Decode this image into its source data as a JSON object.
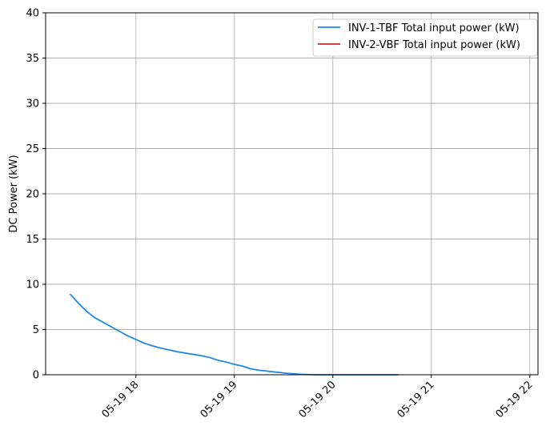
{
  "chart_data": {
    "type": "line",
    "title": "",
    "xlabel": "",
    "ylabel": "DC Power (kW)",
    "ylim": [
      0,
      40
    ],
    "yticks": [
      0,
      5,
      10,
      15,
      20,
      25,
      30,
      35,
      40
    ],
    "xlim_hours": [
      17.0833,
      22.0833
    ],
    "xticks": [
      {
        "value": 18,
        "label": "05-19 18"
      },
      {
        "value": 19,
        "label": "05-19 19"
      },
      {
        "value": 20,
        "label": "05-19 20"
      },
      {
        "value": 21,
        "label": "05-19 21"
      },
      {
        "value": 22,
        "label": "05-19 22"
      }
    ],
    "grid": true,
    "legend_position": "top-right",
    "series": [
      {
        "name": "INV-1-TBF Total input power (kW)",
        "color": "#1e88e5",
        "x": [
          17.333,
          17.417,
          17.5,
          17.583,
          17.667,
          17.75,
          17.833,
          17.917,
          18.0,
          18.083,
          18.167,
          18.25,
          18.333,
          18.417,
          18.5,
          18.583,
          18.667,
          18.75,
          18.833,
          18.917,
          19.0,
          19.083,
          19.167,
          19.25,
          19.333,
          19.417,
          19.5,
          19.583,
          19.667,
          19.75,
          19.833,
          20.0,
          20.25,
          20.5,
          20.667
        ],
        "y": [
          8.9,
          7.9,
          7.0,
          6.3,
          5.8,
          5.3,
          4.8,
          4.3,
          3.9,
          3.5,
          3.2,
          2.95,
          2.75,
          2.55,
          2.4,
          2.25,
          2.1,
          1.9,
          1.6,
          1.4,
          1.15,
          0.95,
          0.65,
          0.5,
          0.4,
          0.3,
          0.2,
          0.12,
          0.05,
          0.02,
          0.0,
          0.0,
          0.0,
          0.0,
          0.0
        ]
      },
      {
        "name": "INV-2-VBF Total input power (kW)",
        "color": "#c62828",
        "x": [],
        "y": []
      }
    ]
  }
}
